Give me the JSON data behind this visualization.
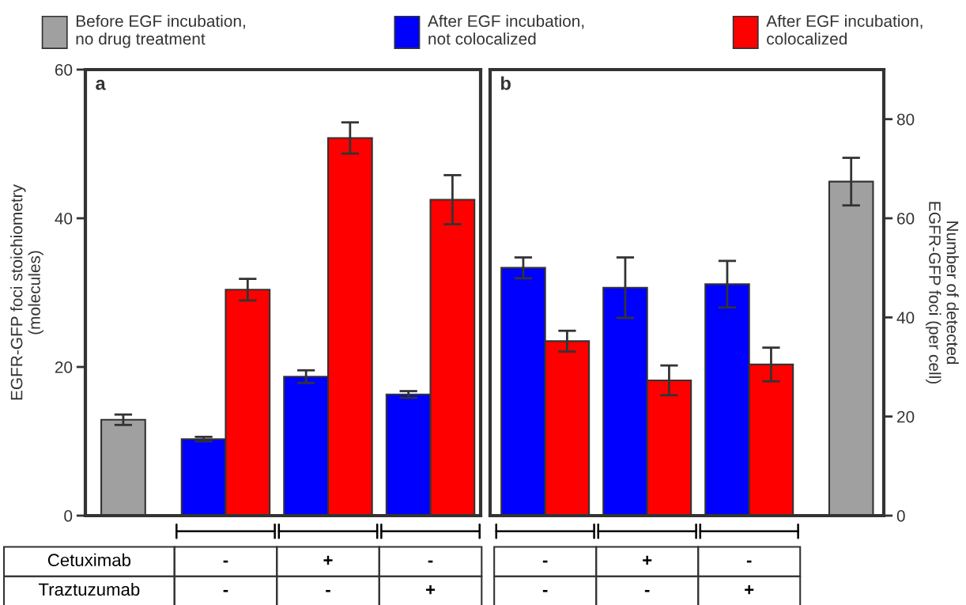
{
  "chart_data": [
    {
      "type": "bar",
      "title": "a",
      "ylabel": "EGFR-GFP foci stoichiometry\n(molecules)",
      "categories": [
        null,
        null,
        null,
        null
      ],
      "ylim": [
        0,
        60
      ],
      "yticks": [
        0,
        20,
        40,
        60
      ],
      "legend": "top",
      "grid": false,
      "series": [
        {
          "name": "Before EGF incubation,\nno drug treatment",
          "color": "#a0a0a0",
          "values": [
            12.9,
            null,
            null,
            null
          ],
          "errors": [
            0.7,
            null,
            null,
            null
          ]
        },
        {
          "name": "After EGF incubation,\nnot colocalized",
          "color": "#0000ff",
          "values": [
            null,
            10.3,
            18.7,
            16.3
          ],
          "errors": [
            null,
            0.3,
            0.85,
            0.45
          ]
        },
        {
          "name": "After EGF incubation,\ncolocalized",
          "color": "#ff0000",
          "values": [
            null,
            30.4,
            50.8,
            42.5
          ],
          "errors": [
            null,
            1.45,
            2.1,
            3.3
          ]
        }
      ],
      "annotations": [
        "Cetuximab",
        "Traztuzumab",
        "-",
        "+",
        "-",
        "-",
        "-",
        "+"
      ]
    },
    {
      "type": "bar",
      "title": "b",
      "ylabel": "Number of detected\nEGFR-GFP foci (per cell)",
      "categories": [
        null,
        null,
        null,
        null
      ],
      "ylim": [
        0,
        90
      ],
      "yticks": [
        0,
        20,
        40,
        60,
        80
      ],
      "grid": false,
      "series": [
        {
          "color": "#a0a0a0",
          "values": [
            null,
            null,
            null,
            67.4
          ],
          "errors": [
            null,
            null,
            null,
            4.8
          ]
        },
        {
          "color": "#0000ff",
          "values": [
            50.0,
            46.0,
            46.7,
            null
          ],
          "errors": [
            2.1,
            6.1,
            4.7,
            null
          ]
        },
        {
          "color": "#ff0000",
          "values": [
            35.2,
            27.3,
            30.5,
            null
          ],
          "errors": [
            2.1,
            3.0,
            3.4,
            null
          ]
        }
      ],
      "annotations": [
        "-",
        "+",
        "-",
        "-",
        "-",
        "+"
      ]
    }
  ]
}
